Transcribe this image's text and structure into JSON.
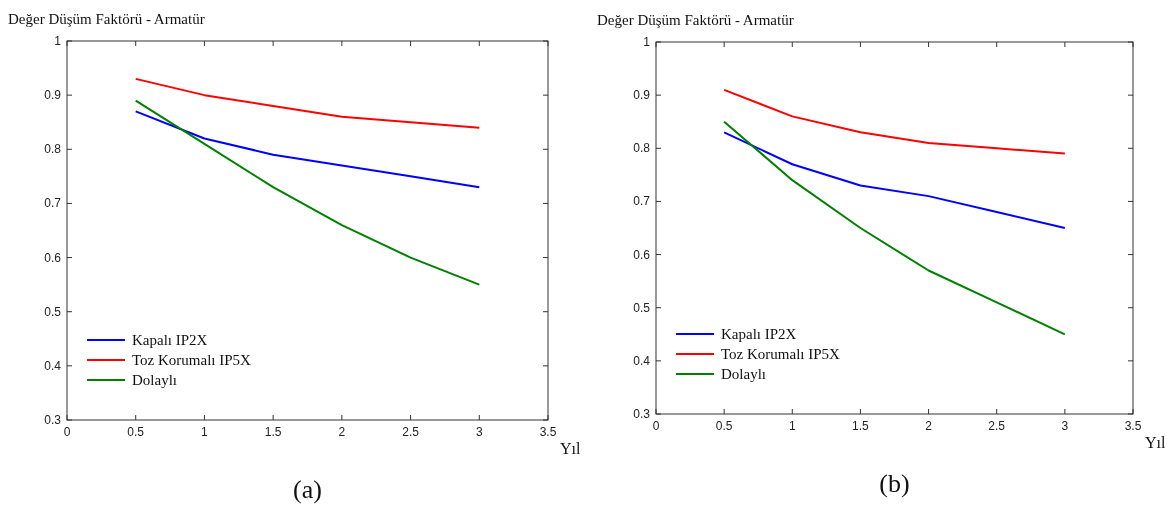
{
  "chart_data": [
    {
      "type": "line",
      "ylabel": "Değer Düşüm Faktörü - Armatür",
      "xlabel": "Yıl",
      "annotations": [
        "(a)"
      ],
      "x": [
        0.5,
        1,
        1.5,
        2,
        2.5,
        3
      ],
      "xlim": [
        0,
        3.5
      ],
      "xticks": [
        0,
        0.5,
        1,
        1.5,
        2,
        2.5,
        3,
        3.5
      ],
      "ylim": [
        0.3,
        1
      ],
      "yticks": [
        0.3,
        0.4,
        0.5,
        0.6,
        0.7,
        0.8,
        0.9,
        1
      ],
      "grid": false,
      "legend": "bottom left",
      "marker": "none",
      "line_style": "solid",
      "series": [
        {
          "name": "Kapalı IP2X",
          "color": "#0000ff",
          "values": [
            0.87,
            0.82,
            0.79,
            0.77,
            0.75,
            0.73
          ]
        },
        {
          "name": "Toz Korumalı IP5X",
          "color": "#ff0000",
          "values": [
            0.93,
            0.9,
            0.88,
            0.86,
            0.85,
            0.84
          ]
        },
        {
          "name": "Dolaylı",
          "color": "#008000",
          "values": [
            0.89,
            0.81,
            0.73,
            0.66,
            0.6,
            0.55
          ]
        }
      ]
    },
    {
      "type": "line",
      "ylabel": "Değer Düşüm Faktörü - Armatür",
      "xlabel": "Yıl",
      "annotations": [
        "(b)"
      ],
      "x": [
        0.5,
        1,
        1.5,
        2,
        2.5,
        3
      ],
      "xlim": [
        0,
        3.5
      ],
      "xticks": [
        0,
        0.5,
        1,
        1.5,
        2,
        2.5,
        3,
        3.5
      ],
      "ylim": [
        0.3,
        1
      ],
      "yticks": [
        0.3,
        0.4,
        0.5,
        0.6,
        0.7,
        0.8,
        0.9,
        1
      ],
      "grid": false,
      "legend": "bottom left",
      "marker": "none",
      "line_style": "solid",
      "series": [
        {
          "name": "Kapalı IP2X",
          "color": "#0000ff",
          "values": [
            0.83,
            0.77,
            0.73,
            0.71,
            0.68,
            0.65
          ]
        },
        {
          "name": "Toz Korumalı IP5X",
          "color": "#ff0000",
          "values": [
            0.91,
            0.86,
            0.83,
            0.81,
            0.8,
            0.79
          ]
        },
        {
          "name": "Dolaylı",
          "color": "#008000",
          "values": [
            0.85,
            0.74,
            0.65,
            0.57,
            0.51,
            0.45
          ]
        }
      ]
    }
  ]
}
